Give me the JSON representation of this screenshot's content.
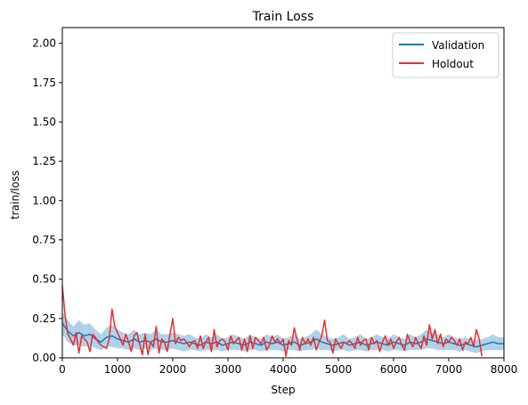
{
  "chart_data": {
    "type": "line",
    "title": "Train Loss",
    "xlabel": "Step",
    "ylabel": "train/loss",
    "xlim": [
      0,
      8000
    ],
    "ylim": [
      0,
      2.1
    ],
    "xticks": [
      0,
      1000,
      2000,
      3000,
      4000,
      5000,
      6000,
      7000,
      8000
    ],
    "xtick_labels": [
      "0",
      "1000",
      "2000",
      "3000",
      "4000",
      "5000",
      "6000",
      "7000",
      "8000"
    ],
    "yticks": [
      0,
      0.25,
      0.5,
      0.75,
      1.0,
      1.25,
      1.5,
      1.75,
      2.0
    ],
    "ytick_labels": [
      "0.00",
      "0.25",
      "0.50",
      "0.75",
      "1.00",
      "1.25",
      "1.50",
      "1.75",
      "2.00"
    ],
    "grid": false,
    "legend_position": "top-right",
    "colors": {
      "validation": "#1f77b4",
      "band": "#6baed6",
      "holdout": "#ee2b2b"
    },
    "series": [
      {
        "name": "Validation",
        "x": [
          0,
          100,
          200,
          300,
          400,
          500,
          600,
          700,
          800,
          900,
          1000,
          1100,
          1200,
          1300,
          1400,
          1500,
          1600,
          1700,
          1800,
          1900,
          2000,
          2100,
          2200,
          2300,
          2400,
          2500,
          2600,
          2700,
          2800,
          2900,
          3000,
          3100,
          3200,
          3300,
          3400,
          3500,
          3600,
          3700,
          3800,
          3900,
          4000,
          4100,
          4200,
          4300,
          4400,
          4500,
          4600,
          4700,
          4800,
          4900,
          5000,
          5100,
          5200,
          5300,
          5400,
          5500,
          5600,
          5700,
          5800,
          5900,
          6000,
          6100,
          6200,
          6300,
          6400,
          6500,
          6600,
          6700,
          6800,
          6900,
          7000,
          7100,
          7200,
          7300,
          7400,
          7500,
          7600,
          7700,
          7800,
          7900,
          8000
        ],
        "y": [
          0.22,
          0.17,
          0.14,
          0.16,
          0.14,
          0.15,
          0.12,
          0.1,
          0.13,
          0.14,
          0.12,
          0.11,
          0.1,
          0.12,
          0.1,
          0.11,
          0.1,
          0.12,
          0.1,
          0.1,
          0.11,
          0.1,
          0.09,
          0.1,
          0.09,
          0.08,
          0.1,
          0.09,
          0.1,
          0.08,
          0.09,
          0.1,
          0.09,
          0.08,
          0.1,
          0.09,
          0.08,
          0.1,
          0.09,
          0.1,
          0.08,
          0.09,
          0.1,
          0.08,
          0.09,
          0.1,
          0.12,
          0.1,
          0.09,
          0.08,
          0.09,
          0.1,
          0.08,
          0.09,
          0.1,
          0.08,
          0.09,
          0.1,
          0.09,
          0.08,
          0.1,
          0.09,
          0.08,
          0.1,
          0.09,
          0.1,
          0.12,
          0.11,
          0.1,
          0.09,
          0.1,
          0.09,
          0.08,
          0.09,
          0.08,
          0.07,
          0.08,
          0.09,
          0.1,
          0.09,
          0.09
        ],
        "band": [
          0.07,
          0.07,
          0.06,
          0.08,
          0.07,
          0.07,
          0.06,
          0.05,
          0.06,
          0.07,
          0.06,
          0.05,
          0.05,
          0.06,
          0.05,
          0.05,
          0.05,
          0.06,
          0.05,
          0.05,
          0.05,
          0.05,
          0.05,
          0.05,
          0.04,
          0.04,
          0.05,
          0.04,
          0.05,
          0.04,
          0.04,
          0.05,
          0.04,
          0.04,
          0.05,
          0.04,
          0.04,
          0.05,
          0.04,
          0.05,
          0.04,
          0.04,
          0.05,
          0.04,
          0.04,
          0.05,
          0.06,
          0.05,
          0.04,
          0.04,
          0.04,
          0.05,
          0.04,
          0.04,
          0.05,
          0.04,
          0.04,
          0.05,
          0.04,
          0.04,
          0.05,
          0.04,
          0.04,
          0.05,
          0.04,
          0.05,
          0.06,
          0.05,
          0.05,
          0.04,
          0.05,
          0.04,
          0.04,
          0.04,
          0.04,
          0.04,
          0.04,
          0.04,
          0.05,
          0.04,
          0.04
        ]
      },
      {
        "name": "Holdout",
        "x": [
          0,
          50,
          100,
          150,
          200,
          250,
          300,
          350,
          400,
          450,
          500,
          550,
          600,
          650,
          700,
          750,
          800,
          850,
          900,
          950,
          1000,
          1050,
          1100,
          1150,
          1200,
          1250,
          1300,
          1350,
          1400,
          1450,
          1500,
          1550,
          1600,
          1650,
          1700,
          1750,
          1800,
          1850,
          1900,
          1950,
          2000,
          2050,
          2100,
          2150,
          2200,
          2250,
          2300,
          2350,
          2400,
          2450,
          2500,
          2550,
          2600,
          2650,
          2700,
          2750,
          2800,
          2850,
          2900,
          2950,
          3000,
          3050,
          3100,
          3150,
          3200,
          3250,
          3300,
          3350,
          3400,
          3450,
          3500,
          3550,
          3600,
          3650,
          3700,
          3750,
          3800,
          3850,
          3900,
          3950,
          4000,
          4050,
          4100,
          4150,
          4200,
          4250,
          4300,
          4350,
          4400,
          4450,
          4500,
          4550,
          4600,
          4650,
          4700,
          4750,
          4800,
          4850,
          4900,
          4950,
          5000,
          5050,
          5100,
          5150,
          5200,
          5250,
          5300,
          5350,
          5400,
          5450,
          5500,
          5550,
          5600,
          5650,
          5700,
          5750,
          5800,
          5850,
          5900,
          5950,
          6000,
          6050,
          6100,
          6150,
          6200,
          6250,
          6300,
          6350,
          6400,
          6450,
          6500,
          6550,
          6600,
          6650,
          6700,
          6750,
          6800,
          6850,
          6900,
          6950,
          7000,
          7050,
          7100,
          7150,
          7200,
          7250,
          7300,
          7350,
          7400,
          7450,
          7500,
          7550,
          7600
        ],
        "y": [
          0.46,
          0.27,
          0.15,
          0.12,
          0.08,
          0.16,
          0.03,
          0.14,
          0.12,
          0.1,
          0.04,
          0.15,
          0.13,
          0.1,
          0.08,
          0.07,
          0.06,
          0.12,
          0.31,
          0.2,
          0.16,
          0.12,
          0.08,
          0.15,
          0.1,
          0.04,
          0.14,
          0.16,
          0.09,
          0.02,
          0.15,
          0.02,
          0.1,
          0.07,
          0.2,
          0.03,
          0.12,
          0.1,
          0.04,
          0.15,
          0.25,
          0.09,
          0.13,
          0.11,
          0.12,
          0.1,
          0.07,
          0.1,
          0.11,
          0.06,
          0.14,
          0.06,
          0.1,
          0.13,
          0.04,
          0.18,
          0.07,
          0.11,
          0.12,
          0.1,
          0.05,
          0.14,
          0.09,
          0.11,
          0.13,
          0.05,
          0.12,
          0.04,
          0.14,
          0.06,
          0.13,
          0.11,
          0.09,
          0.13,
          0.05,
          0.08,
          0.14,
          0.1,
          0.12,
          0.09,
          0.12,
          0.01,
          0.11,
          0.08,
          0.19,
          0.12,
          0.05,
          0.13,
          0.09,
          0.12,
          0.08,
          0.13,
          0.05,
          0.1,
          0.14,
          0.24,
          0.11,
          0.1,
          0.03,
          0.12,
          0.09,
          0.06,
          0.1,
          0.09,
          0.11,
          0.09,
          0.06,
          0.13,
          0.08,
          0.11,
          0.12,
          0.05,
          0.13,
          0.09,
          0.11,
          0.04,
          0.1,
          0.14,
          0.08,
          0.12,
          0.06,
          0.1,
          0.13,
          0.08,
          0.05,
          0.15,
          0.1,
          0.07,
          0.13,
          0.09,
          0.06,
          0.14,
          0.08,
          0.21,
          0.12,
          0.18,
          0.09,
          0.15,
          0.07,
          0.12,
          0.1,
          0.13,
          0.11,
          0.08,
          0.12,
          0.05,
          0.1,
          0.09,
          0.13,
          0.07,
          0.18,
          0.12,
          0.01
        ]
      }
    ]
  }
}
